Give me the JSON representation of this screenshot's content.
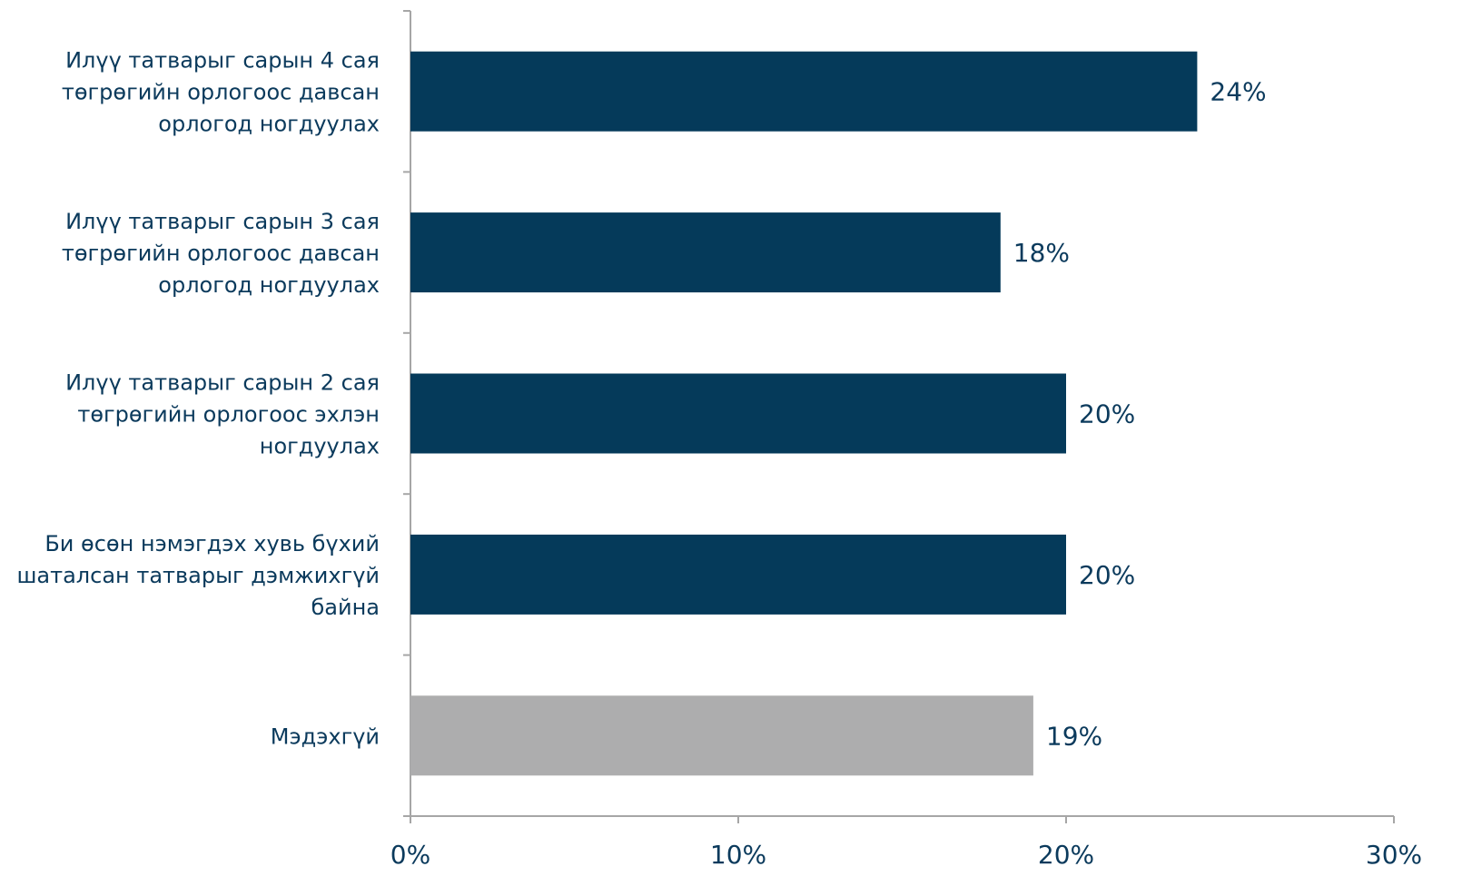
{
  "chart_data": {
    "type": "bar",
    "orientation": "horizontal",
    "categories": [
      [
        "Илүү татварыг сарын 4 сая",
        "төгрөгийн орлогоос давсан",
        "орлогод ногдуулах"
      ],
      [
        "Илүү татварыг сарын 3 сая",
        "төгрөгийн орлогоос давсан",
        "орлогод ногдуулах"
      ],
      [
        "Илүү татварыг сарын 2 сая",
        "төгрөгийн орлогоос эхлэн",
        "ногдуулах"
      ],
      [
        "Би өсөн нэмэгдэх хувь бүхий",
        "шаталсан татварыг дэмжихгүй",
        "байна"
      ],
      [
        "Мэдэхгүй"
      ]
    ],
    "values": [
      24,
      18,
      20,
      20,
      19
    ],
    "value_labels": [
      "24%",
      "18%",
      "20%",
      "20%",
      "19%"
    ],
    "bar_colors": [
      "#053a5a",
      "#053a5a",
      "#053a5a",
      "#053a5a",
      "#adadae"
    ],
    "xlim": [
      0,
      30
    ],
    "xticks": [
      0,
      10,
      20,
      30
    ],
    "xtick_labels": [
      "0%",
      "10%",
      "20%",
      "30%"
    ],
    "grid": false,
    "title": "",
    "xlabel": "",
    "ylabel": ""
  },
  "colors": {
    "text": "#0b3a5c",
    "axis": "#a6a6a6"
  }
}
